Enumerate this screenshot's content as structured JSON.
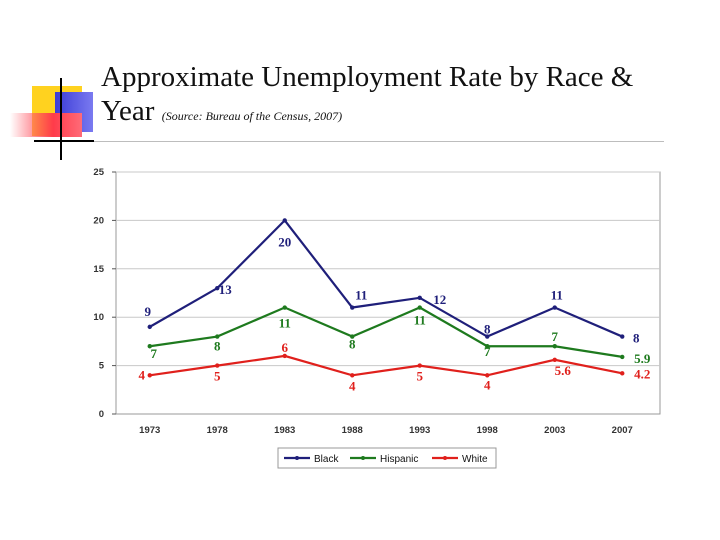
{
  "title": {
    "main_line1": "Approximate Unemployment Rate by Race &",
    "main_line2": "Year",
    "source": "(Source: Bureau of the Census, 2007)"
  },
  "colors": {
    "Black": "#1f1f7a",
    "Hispanic": "#1e7a1e",
    "White": "#e0201c"
  },
  "chart_data": {
    "type": "line",
    "title": "",
    "xlabel": "",
    "ylabel": "",
    "x": [
      "1973",
      "1978",
      "1983",
      "1988",
      "1993",
      "1998",
      "2003",
      "2007"
    ],
    "ylim": [
      0,
      25
    ],
    "yticks": [
      "0",
      "5",
      "10",
      "15",
      "20",
      "25"
    ],
    "grid": true,
    "legend": "bottom",
    "series": [
      {
        "name": "Black",
        "values": [
          9,
          13,
          20,
          11,
          12,
          8,
          11,
          8
        ],
        "labels": [
          "9",
          "13",
          "20",
          "11",
          "12",
          "8",
          "11",
          "8"
        ]
      },
      {
        "name": "Hispanic",
        "values": [
          7,
          8,
          11,
          8,
          11,
          7,
          7,
          5.9
        ],
        "labels": [
          "7",
          "8",
          "11",
          "8",
          "11",
          "7",
          "7",
          "5.9"
        ]
      },
      {
        "name": "White",
        "values": [
          4,
          5,
          6,
          4,
          5,
          4,
          5.6,
          4.2
        ],
        "labels": [
          "4",
          "5",
          "6",
          "4",
          "5",
          "4",
          "5.6",
          "4.2"
        ]
      }
    ]
  }
}
